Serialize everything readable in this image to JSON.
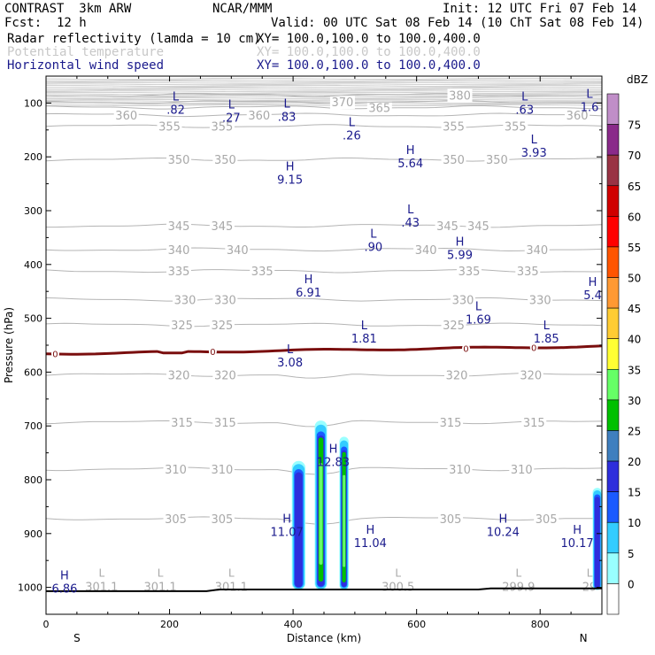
{
  "header": {
    "project": "CONTRAST  3km ARW",
    "center": "NCAR/MMM",
    "init": "Init: 12 UTC Fri 07 Feb 14",
    "fcst_label": "Fcst:",
    "fcst_value": "12 h",
    "valid": "Valid: 00 UTC Sat 08 Feb 14 (10 ChT Sat 08 Feb 14)",
    "fields": [
      {
        "name": "Radar reflectivity (lamda = 10 cm)",
        "xy": "XY= 100.0,100.0 to 100.0,400.0"
      },
      {
        "name": "Potential temperature",
        "xy": "XY= 100.0,100.0 to 100.0,400.0"
      },
      {
        "name": "Horizontal wind speed",
        "xy": "XY= 100.0,100.0 to 100.0,400.0"
      }
    ]
  },
  "chart_data": {
    "type": "cross-section",
    "xlabel": "Distance (km)",
    "ylabel": "Pressure (hPa)",
    "xlim": [
      0,
      900
    ],
    "ylim": [
      1050,
      50
    ],
    "xticks": [
      0,
      200,
      400,
      600,
      800
    ],
    "yticks": [
      100,
      200,
      300,
      400,
      500,
      600,
      700,
      800,
      900,
      1000
    ],
    "x_end_labels": {
      "left": "S",
      "right": "N"
    },
    "colorbar": {
      "unit": "dBZ",
      "levels": [
        "0",
        "5",
        "10",
        "15",
        "20",
        "25",
        "30",
        "35",
        "40",
        "45",
        "50",
        "55",
        "60",
        "65",
        "70",
        "75"
      ],
      "colors": [
        "#ffffff",
        "#99ffff",
        "#33ccff",
        "#1a5aff",
        "#2e2edc",
        "#3f7fbf",
        "#00c000",
        "#66ff66",
        "#ffff33",
        "#ffcc33",
        "#ff9933",
        "#ff5500",
        "#ff0000",
        "#d00000",
        "#993344",
        "#8a2a8a",
        "#c08ec8"
      ]
    },
    "theta_contours": [
      {
        "value": "305",
        "p": 872,
        "labels": [
          [
            210,
            "305"
          ],
          [
            285,
            "305"
          ],
          [
            655,
            "305"
          ],
          [
            810,
            "305"
          ]
        ]
      },
      {
        "value": "310",
        "p": 780,
        "labels": [
          [
            210,
            "310"
          ],
          [
            285,
            "310"
          ],
          [
            670,
            "310"
          ],
          [
            770,
            "310"
          ]
        ]
      },
      {
        "value": "315",
        "p": 693,
        "labels": [
          [
            220,
            "315"
          ],
          [
            290,
            "315"
          ],
          [
            655,
            "315"
          ],
          [
            790,
            "315"
          ]
        ]
      },
      {
        "value": "320",
        "p": 605,
        "labels": [
          [
            215,
            "320"
          ],
          [
            290,
            "320"
          ],
          [
            665,
            "320"
          ],
          [
            785,
            "320"
          ]
        ]
      },
      {
        "value": "325",
        "p": 512,
        "labels": [
          [
            220,
            "325"
          ],
          [
            285,
            "325"
          ],
          [
            660,
            "325"
          ]
        ]
      },
      {
        "value": "330",
        "p": 465,
        "labels": [
          [
            225,
            "330"
          ],
          [
            290,
            "330"
          ],
          [
            675,
            "330"
          ],
          [
            800,
            "330"
          ]
        ]
      },
      {
        "value": "335",
        "p": 412,
        "labels": [
          [
            215,
            "335"
          ],
          [
            350,
            "335"
          ],
          [
            685,
            "335"
          ],
          [
            780,
            "335"
          ]
        ]
      },
      {
        "value": "340",
        "p": 372,
        "labels": [
          [
            215,
            "340"
          ],
          [
            310,
            "340"
          ],
          [
            615,
            "340"
          ],
          [
            795,
            "340"
          ]
        ]
      },
      {
        "value": "345",
        "p": 328,
        "labels": [
          [
            215,
            "345"
          ],
          [
            285,
            "345"
          ],
          [
            650,
            "345"
          ],
          [
            700,
            "345"
          ]
        ]
      },
      {
        "value": "350",
        "p": 205,
        "labels": [
          [
            215,
            "350"
          ],
          [
            290,
            "350"
          ],
          [
            660,
            "350"
          ],
          [
            730,
            "350"
          ]
        ]
      },
      {
        "value": "355",
        "p": 143,
        "labels": [
          [
            200,
            "355"
          ],
          [
            285,
            "355"
          ],
          [
            660,
            "355"
          ],
          [
            760,
            "355"
          ]
        ]
      },
      {
        "value": "360",
        "p": 122,
        "labels": [
          [
            130,
            "360"
          ],
          [
            345,
            "360"
          ],
          [
            860,
            "360"
          ]
        ]
      },
      {
        "value": "365",
        "p": 108,
        "labels": [
          [
            540,
            "365"
          ]
        ]
      },
      {
        "value": "370",
        "p": 98,
        "labels": [
          [
            480,
            "370"
          ]
        ]
      },
      {
        "value": "380",
        "p": 85,
        "labels": [
          [
            670,
            "380"
          ]
        ]
      }
    ],
    "surface_labels": [
      [
        90,
        "301.1"
      ],
      [
        185,
        "301.1"
      ],
      [
        300,
        "301.1"
      ],
      [
        570,
        "300.5"
      ],
      [
        765,
        "299.9"
      ],
      [
        880,
        "29"
      ]
    ],
    "wind_extrema": [
      {
        "type": "L",
        "x": 210,
        "p": 95,
        "value": ".82"
      },
      {
        "type": "L",
        "x": 300,
        "p": 110,
        "value": ".27"
      },
      {
        "type": "L",
        "x": 390,
        "p": 108,
        "value": ".83"
      },
      {
        "type": "L",
        "x": 495,
        "p": 143,
        "value": ".26"
      },
      {
        "type": "L",
        "x": 775,
        "p": 95,
        "value": ".63"
      },
      {
        "type": "L",
        "x": 880,
        "p": 90,
        "value": "1.6"
      },
      {
        "type": "L",
        "x": 790,
        "p": 175,
        "value": "3.93"
      },
      {
        "type": "H",
        "x": 590,
        "p": 195,
        "value": "5.64"
      },
      {
        "type": "H",
        "x": 395,
        "p": 225,
        "value": "9.15"
      },
      {
        "type": "L",
        "x": 590,
        "p": 305,
        "value": ".43"
      },
      {
        "type": "L",
        "x": 530,
        "p": 350,
        "value": ".90"
      },
      {
        "type": "H",
        "x": 670,
        "p": 365,
        "value": "5.99"
      },
      {
        "type": "H",
        "x": 425,
        "p": 435,
        "value": "6.91"
      },
      {
        "type": "H",
        "x": 885,
        "p": 440,
        "value": "5.4"
      },
      {
        "type": "L",
        "x": 700,
        "p": 485,
        "value": "1.69"
      },
      {
        "type": "L",
        "x": 515,
        "p": 520,
        "value": "1.81"
      },
      {
        "type": "L",
        "x": 810,
        "p": 520,
        "value": "1.85"
      },
      {
        "type": "L",
        "x": 395,
        "p": 565,
        "value": "3.08"
      },
      {
        "type": "H",
        "x": 465,
        "p": 750,
        "value": "12.83"
      },
      {
        "type": "H",
        "x": 390,
        "p": 880,
        "value": "11.07"
      },
      {
        "type": "H",
        "x": 525,
        "p": 900,
        "value": "11.04"
      },
      {
        "type": "H",
        "x": 740,
        "p": 880,
        "value": "10.24"
      },
      {
        "type": "H",
        "x": 860,
        "p": 900,
        "value": "10.17"
      },
      {
        "type": "H",
        "x": 30,
        "p": 985,
        "value": "6.86"
      }
    ],
    "zero_contour_labels": [
      [
        15,
        "0"
      ],
      [
        270,
        "0"
      ],
      [
        680,
        "0"
      ],
      [
        790,
        "0"
      ]
    ],
    "radar_cells": [
      {
        "x": [
          398,
          420
        ],
        "p_top": 765,
        "p_bot": 1005
      },
      {
        "x": [
          435,
          455
        ],
        "p_top": 690,
        "p_bot": 1005
      },
      {
        "x": [
          475,
          490
        ],
        "p_top": 720,
        "p_bot": 1005
      },
      {
        "x": [
          885,
          900
        ],
        "p_top": 815,
        "p_bot": 1005
      }
    ]
  }
}
